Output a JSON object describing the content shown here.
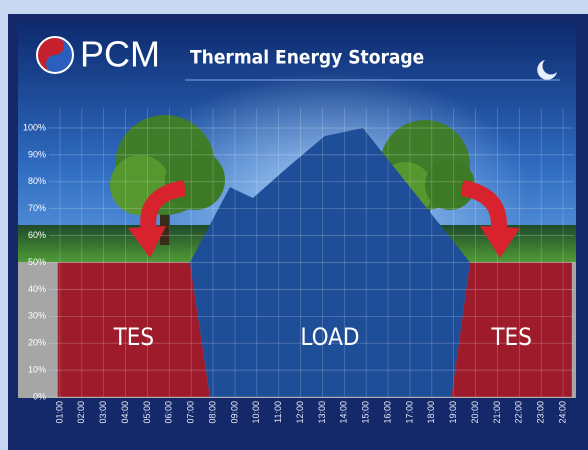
{
  "chart_data": {
    "type": "area",
    "logo_text": "PCM",
    "title": "Thermal Energy Storage",
    "xlim": [
      0.5,
      24.5
    ],
    "xticks": [
      {
        "value": 1,
        "label": "01:00"
      },
      {
        "value": 2,
        "label": "02:00"
      },
      {
        "value": 3,
        "label": "03:00"
      },
      {
        "value": 4,
        "label": "04:00"
      },
      {
        "value": 5,
        "label": "05:00"
      },
      {
        "value": 6,
        "label": "06:00"
      },
      {
        "value": 7,
        "label": "07:00"
      },
      {
        "value": 8,
        "label": "08:00"
      },
      {
        "value": 9,
        "label": "09:00"
      },
      {
        "value": 10,
        "label": "10:00"
      },
      {
        "value": 11,
        "label": "11:00"
      },
      {
        "value": 12,
        "label": "12:00"
      },
      {
        "value": 13,
        "label": "13:00"
      },
      {
        "value": 14,
        "label": "14:00"
      },
      {
        "value": 15,
        "label": "15:00"
      },
      {
        "value": 16,
        "label": "16:00"
      },
      {
        "value": 17,
        "label": "17:00"
      },
      {
        "value": 18,
        "label": "18:00"
      },
      {
        "value": 19,
        "label": "19:00"
      },
      {
        "value": 20,
        "label": "20:00"
      },
      {
        "value": 21,
        "label": "21:00"
      },
      {
        "value": 22,
        "label": "22:00"
      },
      {
        "value": 23,
        "label": "23:00"
      },
      {
        "value": 24,
        "label": "24:00"
      }
    ],
    "ylim": [
      0,
      100
    ],
    "yticks": [
      {
        "value": 0,
        "label": "0%"
      },
      {
        "value": 10,
        "label": "10%"
      },
      {
        "value": 20,
        "label": "20%"
      },
      {
        "value": 30,
        "label": "30%"
      },
      {
        "value": 40,
        "label": "40%"
      },
      {
        "value": 50,
        "label": "50%"
      },
      {
        "value": 60,
        "label": "60%"
      },
      {
        "value": 70,
        "label": "70%"
      },
      {
        "value": 80,
        "label": "80%"
      },
      {
        "value": 90,
        "label": "90%"
      },
      {
        "value": 100,
        "label": "100%"
      }
    ],
    "grid": true,
    "series": [
      {
        "name": "TES",
        "color": "#9e1b2b",
        "x": [
          0.9,
          0.9,
          6.94,
          7.86
        ],
        "values": [
          0,
          50,
          50,
          0
        ]
      },
      {
        "name": "LOAD",
        "color": "#1f4e98",
        "x": [
          7.86,
          6.94,
          8.77,
          9.82,
          11.5,
          13.1,
          14.85,
          19.75,
          18.9
        ],
        "values": [
          0,
          50,
          78,
          74,
          86,
          97,
          100,
          50,
          0
        ]
      },
      {
        "name": "TES",
        "color": "#9e1b2b",
        "x": [
          18.9,
          19.75,
          24.4,
          24.4
        ],
        "values": [
          0,
          50,
          50,
          0
        ]
      }
    ]
  }
}
